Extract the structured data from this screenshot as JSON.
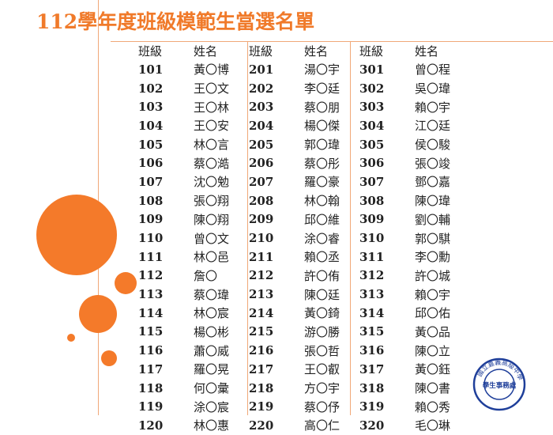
{
  "title": "112學年度班級模範生當選名單",
  "headers": {
    "class": "班級",
    "name": "姓名"
  },
  "groups": [
    {
      "rows": [
        {
          "class": "101",
          "name": "黃〇博"
        },
        {
          "class": "102",
          "name": "王〇文"
        },
        {
          "class": "103",
          "name": "王〇林"
        },
        {
          "class": "104",
          "name": "王〇安"
        },
        {
          "class": "105",
          "name": "林〇言"
        },
        {
          "class": "106",
          "name": "蔡〇澔"
        },
        {
          "class": "107",
          "name": "沈〇勉"
        },
        {
          "class": "108",
          "name": "張〇翔"
        },
        {
          "class": "109",
          "name": "陳〇翔"
        },
        {
          "class": "110",
          "name": "曾〇文"
        },
        {
          "class": "111",
          "name": "林〇邑"
        },
        {
          "class": "112",
          "name": "詹〇"
        },
        {
          "class": "113",
          "name": "蔡〇瑋"
        },
        {
          "class": "114",
          "name": "林〇宸"
        },
        {
          "class": "115",
          "name": "楊〇彬"
        },
        {
          "class": "116",
          "name": "蕭〇威"
        },
        {
          "class": "117",
          "name": "羅〇晃"
        },
        {
          "class": "118",
          "name": "何〇彙"
        },
        {
          "class": "119",
          "name": "涂〇宸"
        },
        {
          "class": "120",
          "name": "林〇惠"
        }
      ]
    },
    {
      "rows": [
        {
          "class": "201",
          "name": "湯〇宇"
        },
        {
          "class": "202",
          "name": "李〇廷"
        },
        {
          "class": "203",
          "name": "蔡〇朋"
        },
        {
          "class": "204",
          "name": "楊〇傑"
        },
        {
          "class": "205",
          "name": "郭〇瑋"
        },
        {
          "class": "206",
          "name": "蔡〇彤"
        },
        {
          "class": "207",
          "name": "羅〇豪"
        },
        {
          "class": "208",
          "name": "林〇翰"
        },
        {
          "class": "209",
          "name": "邱〇維"
        },
        {
          "class": "210",
          "name": "涂〇睿"
        },
        {
          "class": "211",
          "name": "賴〇丞"
        },
        {
          "class": "212",
          "name": "許〇侑"
        },
        {
          "class": "213",
          "name": "陳〇廷"
        },
        {
          "class": "214",
          "name": "黃〇錡"
        },
        {
          "class": "215",
          "name": "游〇勝"
        },
        {
          "class": "216",
          "name": "張〇哲"
        },
        {
          "class": "217",
          "name": "王〇叡"
        },
        {
          "class": "218",
          "name": "方〇宇"
        },
        {
          "class": "219",
          "name": "蔡〇伃"
        },
        {
          "class": "220",
          "name": "高〇仁"
        }
      ]
    },
    {
      "rows": [
        {
          "class": "301",
          "name": "曾〇程"
        },
        {
          "class": "302",
          "name": "吳〇瑋"
        },
        {
          "class": "303",
          "name": "賴〇宇"
        },
        {
          "class": "304",
          "name": "江〇廷"
        },
        {
          "class": "305",
          "name": "侯〇駿"
        },
        {
          "class": "306",
          "name": "張〇竣"
        },
        {
          "class": "307",
          "name": "鄧〇嘉"
        },
        {
          "class": "308",
          "name": "陳〇瑋"
        },
        {
          "class": "309",
          "name": "劉〇輔"
        },
        {
          "class": "310",
          "name": "郭〇騏"
        },
        {
          "class": "311",
          "name": "李〇勳"
        },
        {
          "class": "312",
          "name": "許〇城"
        },
        {
          "class": "313",
          "name": "賴〇宇"
        },
        {
          "class": "314",
          "name": "邱〇佑"
        },
        {
          "class": "315",
          "name": "黃〇品"
        },
        {
          "class": "316",
          "name": "陳〇立"
        },
        {
          "class": "317",
          "name": "黃〇鈺"
        },
        {
          "class": "318",
          "name": "陳〇書"
        },
        {
          "class": "319",
          "name": "賴〇秀"
        },
        {
          "class": "320",
          "name": "毛〇琳"
        }
      ]
    }
  ],
  "seal": {
    "outer_text": "國立嘉義高級中學",
    "inner_text": "學生事務處"
  },
  "colors": {
    "accent": "#f47a2a",
    "title": "#f07a2a",
    "line": "#f0a878",
    "seal": "#1f3f9a"
  }
}
